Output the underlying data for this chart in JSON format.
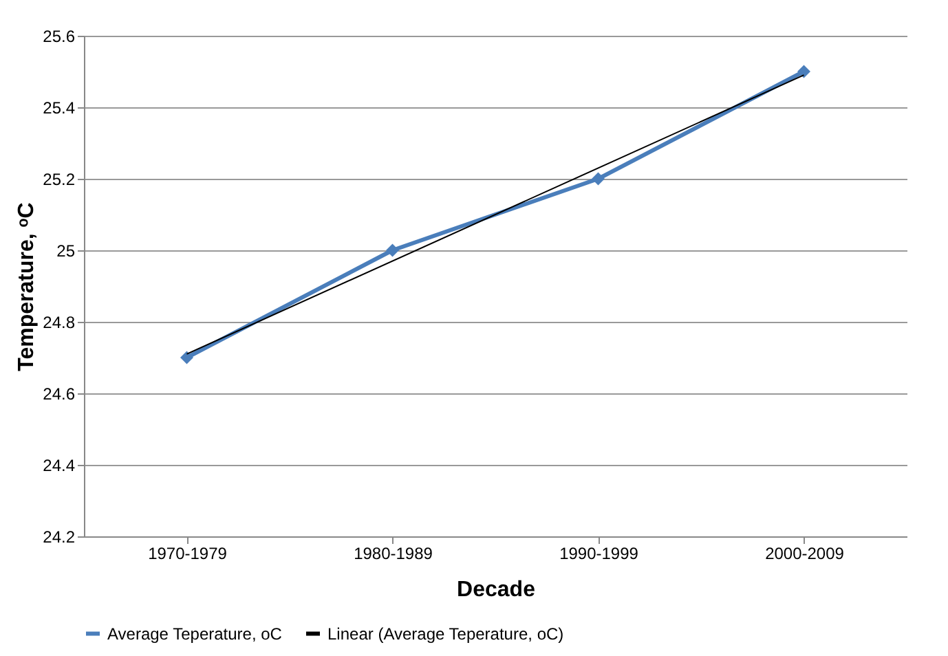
{
  "chart_data": {
    "type": "line",
    "xlabel": "Decade",
    "ylabel": "Temperature, ᵒC",
    "categories": [
      "1970-1979",
      "1980-1989",
      "1990-1999",
      "2000-2009"
    ],
    "series": [
      {
        "name": "Average Teperature, oC",
        "color": "#4a7ebb",
        "values": [
          24.7,
          25.0,
          25.2,
          25.5
        ],
        "marker": "diamond"
      },
      {
        "name": "Linear (Average Teperature, oC)",
        "color": "#000000",
        "type": "line",
        "marker": "none",
        "x": [
          "1970-1979",
          "2000-2009"
        ],
        "values": [
          24.71,
          25.49
        ]
      }
    ],
    "ylim": [
      24.2,
      25.6
    ],
    "yticks": [
      24.2,
      24.4,
      24.6,
      24.8,
      25,
      25.2,
      25.4,
      25.6
    ],
    "grid": "y",
    "legend": "bottom",
    "line_style": "solid"
  }
}
